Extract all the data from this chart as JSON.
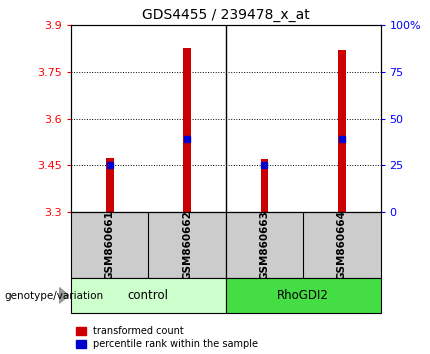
{
  "title": "GDS4455 / 239478_x_at",
  "samples": [
    "GSM860661",
    "GSM860662",
    "GSM860663",
    "GSM860664"
  ],
  "group_labels": [
    "control",
    "RhoGDI2"
  ],
  "group_colors": [
    "#ccffcc",
    "#44dd44"
  ],
  "bar_bottom": 3.3,
  "bar_tops": [
    3.475,
    3.825,
    3.47,
    3.82
  ],
  "blue_marks": [
    3.45,
    3.535,
    3.45,
    3.535
  ],
  "ylim": [
    3.3,
    3.9
  ],
  "y_ticks_left": [
    3.3,
    3.45,
    3.6,
    3.75,
    3.9
  ],
  "y_ticks_right": [
    0,
    25,
    50,
    75,
    100
  ],
  "bar_color": "#cc0000",
  "blue_color": "#0000cc",
  "sample_box_color": "#cccccc",
  "legend_red_label": "transformed count",
  "legend_blue_label": "percentile rank within the sample",
  "genotype_label": "genotype/variation"
}
